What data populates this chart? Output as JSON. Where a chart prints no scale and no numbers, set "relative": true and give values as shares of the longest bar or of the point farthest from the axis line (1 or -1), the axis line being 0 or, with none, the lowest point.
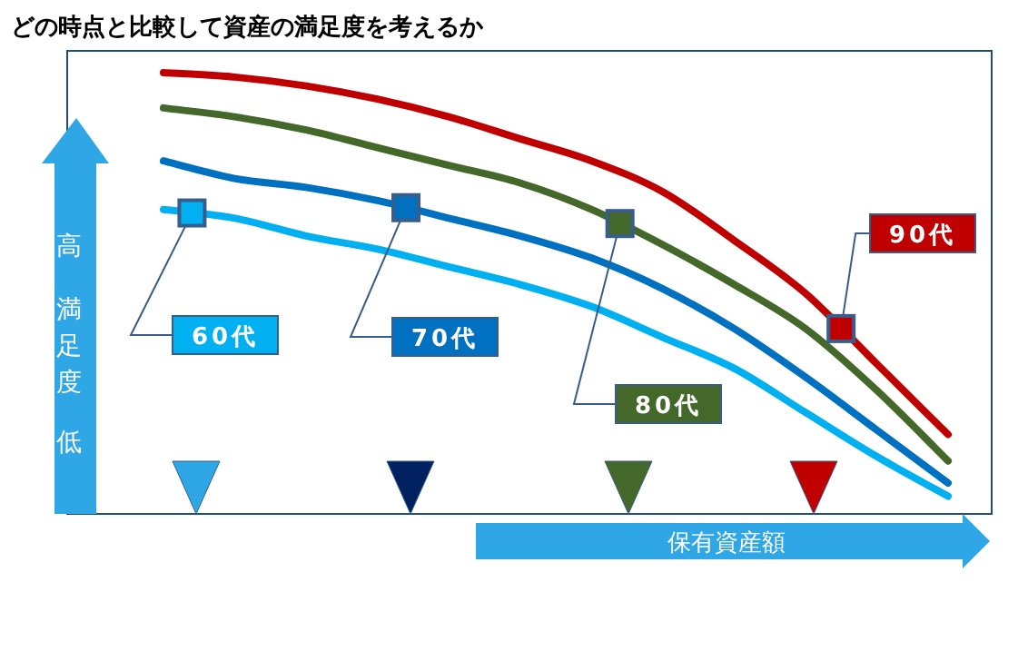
{
  "chart_data": {
    "type": "line",
    "title": "どの時点と比較して資産の満足度を考えるか",
    "xlabel": "保有資産額",
    "ylabel": "満足度",
    "annotations": [
      "高",
      "低"
    ],
    "relative": true,
    "legend": false,
    "grid": false,
    "line_style": "solid",
    "categories": [
      null,
      null,
      null,
      null,
      null,
      null,
      null,
      null,
      null,
      null,
      null,
      null
    ],
    "series": [
      {
        "name": "60代",
        "color": "#00b0f0",
        "values": [
          0.69,
          0.67,
          0.63,
          0.6,
          0.56,
          0.52,
          0.47,
          0.4,
          0.33,
          0.23,
          0.13,
          0.04
        ]
      },
      {
        "name": "70代",
        "color": "#0070c0",
        "values": [
          0.8,
          0.76,
          0.74,
          0.71,
          0.67,
          0.63,
          0.58,
          0.51,
          0.42,
          0.31,
          0.19,
          0.07
        ]
      },
      {
        "name": "80代",
        "color": "#44682a",
        "values": [
          0.92,
          0.9,
          0.87,
          0.83,
          0.79,
          0.75,
          0.69,
          0.61,
          0.52,
          0.42,
          0.28,
          0.12
        ]
      },
      {
        "name": "90代",
        "color": "#c00000",
        "values": [
          1,
          0.99,
          0.97,
          0.94,
          0.9,
          0.85,
          0.8,
          0.73,
          0.62,
          0.5,
          0.34,
          0.18
        ]
      }
    ]
  }
}
